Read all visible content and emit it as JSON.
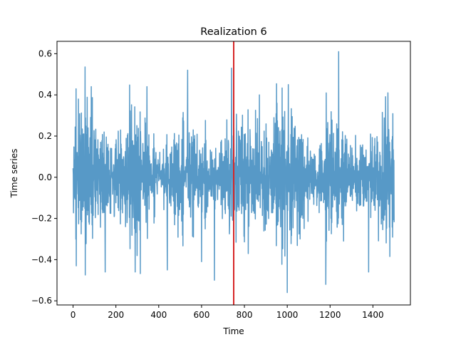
{
  "chart_data": {
    "type": "line",
    "title": "Realization 6",
    "xlabel": "Time",
    "ylabel": "Time series",
    "xlim": [
      -75,
      1575
    ],
    "ylim": [
      -0.62,
      0.66
    ],
    "x_ticks": [
      0,
      200,
      400,
      600,
      800,
      1000,
      1200,
      1400
    ],
    "y_ticks": [
      -0.6,
      -0.4,
      -0.2,
      0.0,
      0.2,
      0.4,
      0.6
    ],
    "x_tick_labels": [
      "0",
      "200",
      "400",
      "600",
      "800",
      "1000",
      "1200",
      "1400"
    ],
    "y_tick_labels": [
      "−0.6",
      "−0.4",
      "−0.2",
      "0.0",
      "0.2",
      "0.4",
      "0.6"
    ],
    "grid": false,
    "series": [
      {
        "color": "#5799c7",
        "n_points": 1500,
        "x_start": 0,
        "x_end": 1499,
        "approx_mean": 0.0,
        "approx_max": 0.61,
        "approx_min": -0.56,
        "visible_extremes": [
          {
            "x": 25,
            "y": 0.38
          },
          {
            "x": 15,
            "y": -0.43
          },
          {
            "x": 85,
            "y": 0.44
          },
          {
            "x": 150,
            "y": -0.46
          },
          {
            "x": 290,
            "y": -0.46
          },
          {
            "x": 345,
            "y": 0.44
          },
          {
            "x": 440,
            "y": -0.45
          },
          {
            "x": 535,
            "y": 0.52
          },
          {
            "x": 600,
            "y": -0.41
          },
          {
            "x": 660,
            "y": -0.5
          },
          {
            "x": 740,
            "y": 0.53
          },
          {
            "x": 870,
            "y": 0.4
          },
          {
            "x": 1000,
            "y": -0.56
          },
          {
            "x": 1005,
            "y": 0.45
          },
          {
            "x": 1180,
            "y": -0.52
          },
          {
            "x": 1240,
            "y": 0.61
          },
          {
            "x": 1380,
            "y": -0.46
          },
          {
            "x": 1470,
            "y": 0.41
          }
        ]
      }
    ],
    "vline": {
      "x": 750,
      "color": "#d62728"
    }
  }
}
